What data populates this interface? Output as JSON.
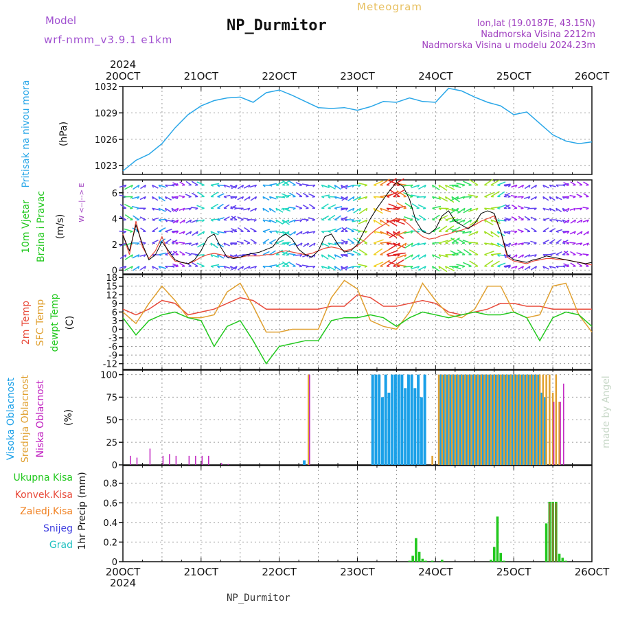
{
  "header": {
    "model_label": "Model",
    "model_name": "wrf-nmm_v3.9.1 e1km",
    "station": "NP_Durmitor",
    "product": "Meteogram",
    "coords": "lon,lat (19.0187E, 43.15N)",
    "elevation": "Nadmorska Visina 2212m",
    "model_elevation": "Nadmorska Visina u modelu 2024.23m"
  },
  "footer": {
    "station": "NP_Durmitor",
    "credit": "made by Angel"
  },
  "time_axis": {
    "year": "2024",
    "labels": [
      "20OCT",
      "21OCT",
      "22OCT",
      "23OCT",
      "24OCT",
      "25OCT",
      "26OCT"
    ]
  },
  "colors": {
    "pressure": "#2aa7e8",
    "temp2m": "#e84a3a",
    "sfc_temp": "#e0a030",
    "dewpt": "#22c81e",
    "cloud_high": "#1aa0e8",
    "cloud_mid": "#e0a030",
    "cloud_low": "#c020c0",
    "precip_total": "#22c81e",
    "precip_conv": "#e84a3a",
    "frozen": "#f08020",
    "snow": "#4040e0",
    "hail": "#20c0c0",
    "wind_speed_line": "#000000",
    "gust_line": "#e84a3a",
    "model_label": "#a050d0",
    "header_right": "#a040c0",
    "meteogram_label": "#e8c060"
  },
  "chart_data": [
    {
      "type": "line",
      "panel": "pressure",
      "ylabel_main": "Pritisak na nivou mora",
      "unit": "(hPa)",
      "ylim": [
        1022,
        1032
      ],
      "yticks": [
        1023,
        1026,
        1029,
        1032
      ],
      "x": [
        0,
        4,
        8,
        12,
        16,
        20,
        24,
        28,
        32,
        36,
        40,
        44,
        48,
        52,
        56,
        60,
        64,
        68,
        72,
        76,
        80,
        84,
        88,
        92,
        96,
        100,
        104,
        108,
        112,
        116,
        120,
        124,
        128,
        132,
        136,
        140,
        144
      ],
      "values": [
        1022.4,
        1023.6,
        1024.3,
        1025.5,
        1027.3,
        1028.8,
        1029.8,
        1030.4,
        1030.7,
        1030.8,
        1030.2,
        1031.3,
        1031.6,
        1031.0,
        1030.3,
        1029.6,
        1029.5,
        1029.6,
        1029.3,
        1029.7,
        1030.3,
        1030.2,
        1030.7,
        1030.3,
        1030.2,
        1031.8,
        1031.5,
        1030.8,
        1030.2,
        1029.8,
        1028.8,
        1029.1,
        1027.8,
        1026.5,
        1025.8,
        1025.5,
        1025.7
      ]
    },
    {
      "type": "line",
      "panel": "wind",
      "ylabel_main": "10m Vjetar",
      "ylabel_sub": "Brzina i Pravac",
      "unit": "(m/s)",
      "compass": "W <--|--> E",
      "ylim": [
        -0.3,
        7
      ],
      "yticks": [
        0,
        2,
        4,
        6
      ],
      "series": [
        {
          "name": "speed",
          "x": [
            0,
            2,
            4,
            6,
            8,
            10,
            12,
            14,
            16,
            18,
            20,
            22,
            24,
            26,
            28,
            30,
            32,
            34,
            36,
            38,
            40,
            42,
            44,
            46,
            48,
            50,
            52,
            54,
            56,
            58,
            60,
            62,
            64,
            66,
            68,
            70,
            72,
            74,
            76,
            78,
            80,
            82,
            84,
            86,
            88,
            90,
            92,
            94,
            96,
            98,
            100,
            102,
            104,
            106,
            108,
            110,
            112,
            114,
            116,
            118,
            120,
            122,
            124,
            126,
            128,
            130,
            132,
            134,
            136,
            138,
            140,
            142,
            144
          ],
          "values": [
            2.7,
            1.5,
            3.5,
            2.0,
            0.8,
            1.2,
            2.2,
            1.5,
            0.8,
            0.6,
            0.5,
            0.8,
            1.5,
            2.5,
            2.8,
            1.8,
            1.0,
            0.9,
            1.0,
            1.2,
            1.3,
            1.4,
            1.6,
            1.8,
            2.5,
            2.8,
            2.4,
            1.6,
            1.2,
            1.0,
            1.5,
            2.6,
            2.8,
            2.0,
            1.4,
            1.5,
            2.0,
            3.0,
            4.0,
            4.8,
            5.5,
            6.2,
            6.8,
            6.5,
            5.5,
            3.8,
            3.0,
            2.8,
            3.2,
            4.2,
            4.6,
            3.8,
            3.5,
            3.2,
            3.6,
            4.4,
            4.6,
            4.4,
            3.0,
            1.2,
            0.8,
            0.7,
            0.6,
            0.8,
            0.9,
            1.1,
            1.0,
            0.9,
            0.8,
            0.7,
            0.6,
            0.5,
            0.6
          ]
        },
        {
          "name": "gust",
          "x": [
            0,
            2,
            4,
            6,
            8,
            10,
            12,
            14,
            16,
            18,
            20,
            22,
            24,
            26,
            28,
            30,
            32,
            34,
            36,
            38,
            40,
            42,
            44,
            46,
            48,
            50,
            52,
            54,
            56,
            58,
            60,
            62,
            64,
            66,
            68,
            70,
            72,
            74,
            76,
            78,
            80,
            82,
            84,
            86,
            88,
            90,
            92,
            94,
            96,
            98,
            100,
            102,
            104,
            106,
            108,
            110,
            112,
            114,
            116,
            118,
            120,
            122,
            124,
            126,
            128,
            130,
            132,
            134,
            136,
            138,
            140,
            142,
            144
          ],
          "values": [
            2.8,
            1.2,
            3.8,
            1.8,
            0.9,
            1.5,
            2.6,
            1.3,
            0.7,
            0.6,
            0.5,
            0.7,
            1.0,
            1.2,
            1.3,
            1.2,
            1.1,
            1.0,
            1.0,
            1.1,
            1.1,
            1.1,
            1.2,
            1.2,
            1.4,
            1.5,
            1.4,
            1.3,
            1.2,
            1.3,
            1.5,
            1.7,
            1.8,
            1.7,
            1.5,
            1.6,
            1.9,
            2.3,
            2.8,
            3.2,
            3.5,
            3.8,
            4.0,
            3.9,
            3.5,
            3.0,
            2.6,
            2.4,
            2.5,
            2.7,
            2.8,
            3.0,
            3.1,
            3.3,
            3.5,
            3.8,
            4.0,
            4.2,
            3.0,
            1.0,
            0.7,
            0.6,
            0.5,
            0.7,
            0.8,
            0.9,
            0.9,
            0.8,
            0.8,
            0.7,
            0.6,
            0.5,
            0.4
          ]
        }
      ]
    },
    {
      "type": "line",
      "panel": "temperature",
      "ylabel_main": "2m Temp",
      "ylabel_sub": "SFC Temp",
      "ylabel_sub2": "dewpt Temp",
      "unit": "(C)",
      "ylim": [
        -14,
        19
      ],
      "yticks": [
        -12,
        -9,
        -6,
        -3,
        0,
        3,
        6,
        9,
        12,
        15,
        18
      ],
      "x": [
        0,
        4,
        8,
        12,
        16,
        20,
        24,
        28,
        32,
        36,
        40,
        44,
        48,
        52,
        56,
        60,
        64,
        68,
        72,
        76,
        80,
        84,
        88,
        92,
        96,
        100,
        104,
        108,
        112,
        116,
        120,
        124,
        128,
        132,
        136,
        140,
        144
      ],
      "series": [
        {
          "name": "2m Temp",
          "values": [
            7,
            5,
            7,
            10,
            9,
            5,
            6,
            7,
            9,
            11,
            10,
            7,
            7,
            7,
            7,
            7,
            8,
            8,
            12,
            11,
            8,
            8,
            9,
            10,
            9,
            6,
            5,
            6,
            7,
            9,
            9,
            8,
            8,
            7,
            7,
            7,
            7
          ]
        },
        {
          "name": "SFC Temp",
          "values": [
            6,
            2,
            9,
            15,
            10,
            4,
            4,
            5,
            13,
            16,
            8,
            -1,
            -1,
            0,
            0,
            0,
            11,
            17,
            14,
            3,
            1,
            0,
            6,
            16,
            10,
            5,
            4,
            7,
            15,
            15,
            6,
            4,
            5,
            15,
            16,
            5,
            -1
          ]
        },
        {
          "name": "dewpt Temp",
          "values": [
            4,
            -2,
            3,
            5,
            6,
            4,
            3,
            -6,
            1,
            3,
            -4,
            -12,
            -6,
            -5,
            -4,
            -4,
            3,
            4,
            4,
            5,
            4,
            1,
            4,
            6,
            5,
            4,
            5,
            6,
            5,
            5,
            6,
            4,
            -4,
            4,
            6,
            5,
            1
          ]
        }
      ]
    },
    {
      "type": "bar",
      "panel": "clouds",
      "ylabel_main": "Visoka Oblacnost",
      "ylabel_sub": "Srednja Oblacnost",
      "ylabel_sub2": "Niska Oblacnost",
      "unit": "(%)",
      "ylim": [
        0,
        105
      ],
      "yticks": [
        0,
        25,
        50,
        75,
        100
      ],
      "x": [
        2,
        4,
        8,
        12,
        14,
        16,
        20,
        22,
        24,
        26,
        30,
        32,
        56,
        57,
        58,
        77,
        78,
        79,
        80,
        81,
        82,
        83,
        84,
        85,
        86,
        87,
        88,
        89,
        90,
        91,
        92,
        93,
        95,
        96,
        97,
        98,
        99,
        100,
        101,
        102,
        103,
        104,
        105,
        106,
        107,
        108,
        109,
        110,
        111,
        112,
        113,
        114,
        115,
        116,
        117,
        118,
        119,
        120,
        121,
        122,
        123,
        124,
        125,
        126,
        127,
        128,
        129,
        130,
        131,
        132,
        133,
        134,
        135,
        136
      ],
      "series": [
        {
          "name": "Visoka Oblacnost",
          "values": [
            0,
            0,
            0,
            0,
            0,
            0,
            0,
            0,
            0,
            0,
            0,
            0,
            5,
            0,
            0,
            100,
            100,
            100,
            75,
            100,
            80,
            100,
            100,
            100,
            100,
            85,
            100,
            100,
            85,
            100,
            75,
            100,
            0,
            0,
            0,
            100,
            100,
            100,
            100,
            100,
            100,
            100,
            100,
            100,
            100,
            100,
            100,
            100,
            100,
            100,
            100,
            100,
            100,
            100,
            100,
            100,
            100,
            100,
            100,
            100,
            100,
            100,
            100,
            100,
            100,
            100,
            80,
            75,
            0,
            0,
            0,
            0,
            0,
            0
          ]
        },
        {
          "name": "Srednja Oblacnost",
          "values": [
            0,
            0,
            0,
            0,
            0,
            0,
            0,
            0,
            0,
            0,
            0,
            0,
            0,
            100,
            0,
            0,
            0,
            0,
            0,
            0,
            0,
            0,
            0,
            0,
            0,
            0,
            0,
            0,
            0,
            0,
            0,
            0,
            10,
            0,
            100,
            100,
            100,
            100,
            100,
            100,
            100,
            100,
            100,
            100,
            100,
            100,
            100,
            100,
            100,
            100,
            100,
            100,
            100,
            100,
            100,
            100,
            100,
            100,
            100,
            100,
            100,
            100,
            100,
            100,
            100,
            100,
            100,
            100,
            100,
            80,
            100,
            70,
            0,
            0
          ]
        },
        {
          "name": "Niska Oblacnost",
          "values": [
            10,
            8,
            18,
            10,
            12,
            10,
            10,
            10,
            10,
            10,
            2,
            1,
            0,
            100,
            0,
            0,
            0,
            0,
            0,
            0,
            0,
            0,
            0,
            0,
            0,
            0,
            0,
            0,
            0,
            0,
            0,
            0,
            0,
            0,
            0,
            0,
            0,
            0,
            0,
            0,
            0,
            0,
            0,
            0,
            0,
            0,
            0,
            0,
            0,
            0,
            0,
            0,
            0,
            0,
            0,
            0,
            0,
            0,
            0,
            0,
            0,
            0,
            0,
            0,
            0,
            0,
            0,
            0,
            0,
            70,
            0,
            70,
            90,
            0
          ]
        }
      ]
    },
    {
      "type": "bar",
      "panel": "precipitation",
      "ylabel_main": "1hr Precip (mm)",
      "legend": [
        "Ukupna Kisa",
        "Konvek.Kisa",
        "Zaledj.Kisa",
        "Snijeg",
        "Grad"
      ],
      "ylim": [
        0,
        0.98
      ],
      "yticks": [
        0,
        0.2,
        0.4,
        0.6,
        0.8
      ],
      "ytick_labels": [
        "0",
        "0.2",
        "0.4",
        "0.6",
        "0.8"
      ],
      "x": [
        88,
        89,
        90,
        91,
        92,
        93,
        95,
        98,
        113,
        114,
        115,
        116,
        117,
        130,
        131,
        132,
        133,
        134,
        135,
        136
      ],
      "values": [
        0.01,
        0.06,
        0.24,
        0.1,
        0.03,
        0.01,
        0.01,
        0.02,
        0.02,
        0.15,
        0.46,
        0.09,
        0.01,
        0.39,
        0.61,
        0.61,
        0.61,
        0.08,
        0.04,
        0.01
      ],
      "convective": [
        0,
        0,
        0,
        0,
        0,
        0,
        0,
        0,
        0,
        0,
        0,
        0,
        0,
        0,
        0.6,
        0.6,
        0.6,
        0,
        0,
        0
      ]
    }
  ]
}
